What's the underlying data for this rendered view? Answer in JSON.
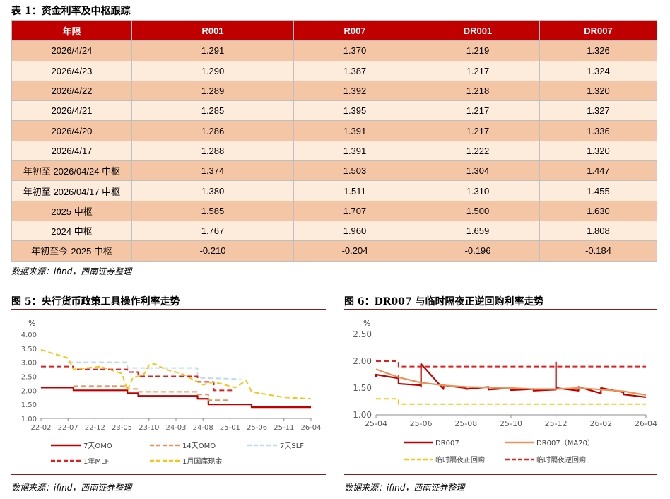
{
  "table": {
    "title": "表 1：资金利率及中枢跟踪",
    "headers": [
      "年限",
      "R001",
      "R007",
      "DR001",
      "DR007"
    ],
    "rows": [
      [
        "2026/4/24",
        "1.291",
        "1.370",
        "1.219",
        "1.326"
      ],
      [
        "2026/4/23",
        "1.290",
        "1.387",
        "1.217",
        "1.324"
      ],
      [
        "2026/4/22",
        "1.289",
        "1.392",
        "1.218",
        "1.320"
      ],
      [
        "2026/4/21",
        "1.285",
        "1.395",
        "1.217",
        "1.327"
      ],
      [
        "2026/4/20",
        "1.286",
        "1.391",
        "1.217",
        "1.336"
      ],
      [
        "2026/4/17",
        "1.288",
        "1.391",
        "1.222",
        "1.320"
      ],
      [
        "年初至 2026/04/24 中枢",
        "1.374",
        "1.503",
        "1.304",
        "1.447"
      ],
      [
        "年初至 2026/04/17 中枢",
        "1.380",
        "1.511",
        "1.310",
        "1.455"
      ],
      [
        "2025 中枢",
        "1.585",
        "1.707",
        "1.500",
        "1.630"
      ],
      [
        "2024 中枢",
        "1.767",
        "1.960",
        "1.659",
        "1.808"
      ],
      [
        "年初至今-2025 中枢",
        "-0.210",
        "-0.204",
        "-0.196",
        "-0.184"
      ]
    ],
    "source": "数据来源：ifind，西南证券整理"
  },
  "fig5": {
    "title": "图 5：央行货币政策工具操作利率走势",
    "source": "数据来源：ifind，西南证券整理"
  },
  "fig6": {
    "title": "图 6：DR007 与临时隔夜正逆回购利率走势",
    "source": "数据来源：ifind，西南证券整理"
  },
  "colors": {
    "header_red": "#c00000",
    "row_dark": "#f4c6a6",
    "row_light": "#fdebdc",
    "line_red": "#c00000",
    "line_orange": "#e8935a",
    "line_blue": "#bcdde6",
    "line_red_dash": "#e01e1e",
    "line_yellow": "#f5c518"
  },
  "chart_data": [
    {
      "type": "line",
      "unit_label": "%",
      "ylim": [
        1.0,
        4.0
      ],
      "yticks": [
        "1.00",
        "1.50",
        "2.00",
        "2.50",
        "3.00",
        "3.50",
        "4.00"
      ],
      "xticks": [
        "22-02",
        "22-07",
        "22-12",
        "23-05",
        "23-10",
        "24-03",
        "24-08",
        "25-01",
        "25-06",
        "25-11",
        "26-04"
      ],
      "series": [
        {
          "name": "7天OMO",
          "color": "#c00000",
          "dash": "solid",
          "x": [
            "22-02",
            "22-08",
            "22-08",
            "23-06",
            "23-06",
            "23-08",
            "23-08",
            "24-07",
            "24-07",
            "24-09",
            "24-09",
            "25-05",
            "25-05",
            "26-04"
          ],
          "y": [
            2.1,
            2.1,
            2.0,
            2.0,
            1.9,
            1.9,
            1.8,
            1.8,
            1.7,
            1.7,
            1.5,
            1.5,
            1.4,
            1.4
          ]
        },
        {
          "name": "14天OMO",
          "color": "#e8935a",
          "dash": "dash",
          "x": [
            "22-08",
            "23-06",
            "23-06",
            "23-08",
            "23-08",
            "24-07",
            "24-07",
            "24-09",
            "24-09",
            "25-01"
          ],
          "y": [
            2.15,
            2.15,
            2.05,
            2.05,
            1.95,
            1.95,
            1.85,
            1.85,
            1.65,
            1.65
          ]
        },
        {
          "name": "7天SLF",
          "color": "#bcdde6",
          "dash": "dash",
          "x": [
            "22-07",
            "23-06",
            "23-06",
            "24-07",
            "24-07",
            "25-03"
          ],
          "y": [
            3.0,
            3.0,
            2.8,
            2.8,
            2.45,
            2.4
          ]
        },
        {
          "name": "1年MLF",
          "color": "#e01e1e",
          "dash": "dash",
          "x": [
            "22-02",
            "22-08",
            "22-08",
            "23-06",
            "23-06",
            "23-08",
            "23-08",
            "24-07",
            "24-07",
            "24-10",
            "24-10",
            "25-02"
          ],
          "y": [
            2.85,
            2.85,
            2.75,
            2.75,
            2.65,
            2.65,
            2.5,
            2.5,
            2.3,
            2.3,
            2.0,
            2.0
          ]
        },
        {
          "name": "1月国库现金",
          "color": "#f5c518",
          "dash": "dash",
          "x": [
            "22-02",
            "22-07",
            "22-08",
            "23-01",
            "23-05",
            "23-06",
            "23-07",
            "23-09",
            "23-10",
            "23-11",
            "24-01",
            "24-04",
            "24-08",
            "24-10",
            "25-02",
            "25-04",
            "25-05",
            "25-11",
            "26-04"
          ],
          "y": [
            3.45,
            3.15,
            2.75,
            2.85,
            2.6,
            2.0,
            2.45,
            2.55,
            2.9,
            2.95,
            2.75,
            2.6,
            2.2,
            2.3,
            2.1,
            2.35,
            1.95,
            1.75,
            1.7
          ]
        }
      ]
    },
    {
      "type": "line",
      "unit_label": "%",
      "ylim": [
        1.0,
        2.5
      ],
      "yticks": [
        "1.00",
        "1.50",
        "2.00",
        "2.50"
      ],
      "xticks": [
        "25-04",
        "25-06",
        "25-08",
        "25-10",
        "25-12",
        "26-02",
        "26-04"
      ],
      "series": [
        {
          "name": "DR007",
          "color": "#c00000",
          "dash": "solid",
          "x": [
            "25-04",
            "25-04",
            "25-05",
            "25-05",
            "25-05",
            "25-06",
            "25-06",
            "25-06",
            "25-07",
            "25-07",
            "25-08",
            "25-08",
            "25-09",
            "25-09",
            "25-10",
            "25-10",
            "25-11",
            "25-11",
            "25-12",
            "25-12",
            "25-12",
            "26-01",
            "26-01",
            "26-02",
            "26-02",
            "26-03",
            "26-03",
            "26-04"
          ],
          "y": [
            1.7,
            1.75,
            1.68,
            1.72,
            1.58,
            1.55,
            1.52,
            1.95,
            1.48,
            1.55,
            1.5,
            1.48,
            1.52,
            1.47,
            1.5,
            1.46,
            1.48,
            1.45,
            1.47,
            1.98,
            1.5,
            1.45,
            1.52,
            1.4,
            1.5,
            1.42,
            1.38,
            1.33
          ]
        },
        {
          "name": "DR007（MA20）",
          "color": "#e8935a",
          "dash": "solid",
          "x": [
            "25-04",
            "25-05",
            "25-06",
            "25-07",
            "25-08",
            "25-09",
            "25-10",
            "25-11",
            "25-12",
            "26-01",
            "26-02",
            "26-03",
            "26-04"
          ],
          "y": [
            1.85,
            1.7,
            1.6,
            1.55,
            1.52,
            1.51,
            1.5,
            1.48,
            1.48,
            1.5,
            1.47,
            1.44,
            1.37
          ]
        },
        {
          "name": "临时隔夜正回购",
          "color": "#f5c518",
          "dash": "dash",
          "x": [
            "25-04",
            "25-05",
            "25-05",
            "26-04"
          ],
          "y": [
            1.3,
            1.3,
            1.2,
            1.2
          ]
        },
        {
          "name": "临时隔夜逆回购",
          "color": "#e01e1e",
          "dash": "dash",
          "x": [
            "25-04",
            "25-05",
            "25-05",
            "26-04"
          ],
          "y": [
            2.0,
            2.0,
            1.9,
            1.9
          ]
        }
      ]
    }
  ]
}
